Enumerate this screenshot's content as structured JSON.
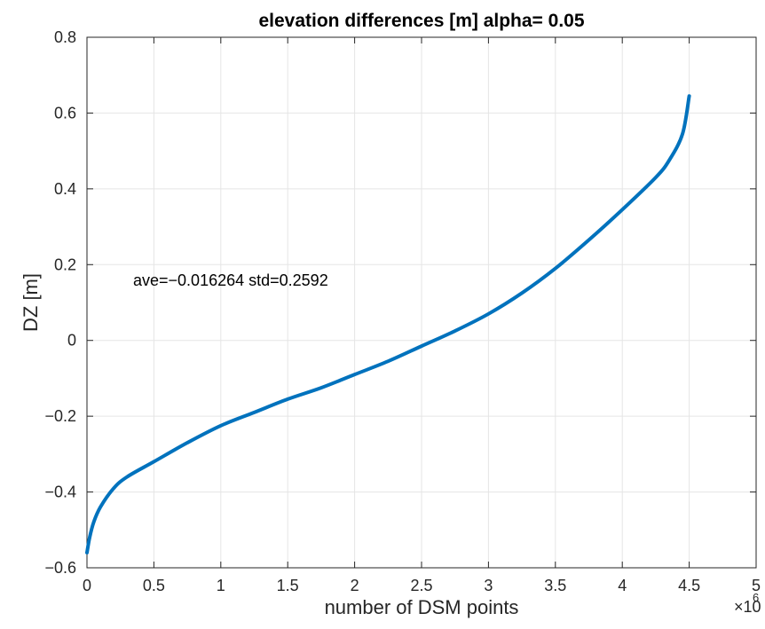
{
  "chart_data": {
    "type": "line",
    "title": "elevation differences [m] alpha= 0.05",
    "xlabel": "number of DSM points",
    "ylabel": "DZ [m]",
    "x_exponent_base": "×10",
    "x_exponent_power": "6",
    "annotation": "ave=−0.016264  std=0.2592",
    "xlim": [
      0,
      5
    ],
    "ylim": [
      -0.6,
      0.8
    ],
    "x_ticks": [
      "0",
      "0.5",
      "1",
      "1.5",
      "2",
      "2.5",
      "3",
      "3.5",
      "4",
      "4.5",
      "5"
    ],
    "y_ticks": [
      "-0.6",
      "-0.4",
      "-0.2",
      "0",
      "0.2",
      "0.4",
      "0.6",
      "0.8"
    ],
    "grid": true,
    "line_color": "#0072BD",
    "series": [
      {
        "x": [
          0,
          0.02,
          0.05,
          0.1,
          0.2,
          0.3,
          0.5,
          0.75,
          1.0,
          1.25,
          1.5,
          1.75,
          2.0,
          2.25,
          2.5,
          2.75,
          3.0,
          3.25,
          3.5,
          3.75,
          4.0,
          4.25,
          4.35,
          4.45,
          4.5
        ],
        "y": [
          -0.56,
          -0.52,
          -0.48,
          -0.44,
          -0.39,
          -0.36,
          -0.32,
          -0.27,
          -0.225,
          -0.19,
          -0.155,
          -0.125,
          -0.09,
          -0.055,
          -0.015,
          0.025,
          0.07,
          0.125,
          0.19,
          0.265,
          0.345,
          0.43,
          0.475,
          0.545,
          0.645
        ]
      }
    ]
  }
}
